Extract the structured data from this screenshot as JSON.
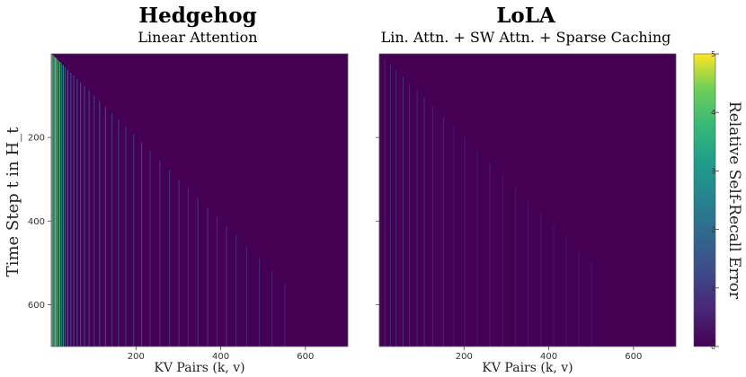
{
  "chart_data": [
    {
      "type": "heatmap",
      "title": "Hedgehog",
      "subtitle": "Linear Attention",
      "xlabel": "KV Pairs (k, v)",
      "ylabel": "Time Step t in H_t",
      "xlim": [
        0,
        700
      ],
      "ylim": [
        700,
        0
      ],
      "xticks": [
        200,
        400,
        600
      ],
      "yticks": [
        200,
        400,
        600
      ],
      "columns": [
        {
          "kv": 0,
          "value": 4.5
        },
        {
          "kv": 3,
          "value": 4.0
        },
        {
          "kv": 6,
          "value": 3.2
        },
        {
          "kv": 9,
          "value": 4.8
        },
        {
          "kv": 12,
          "value": 2.8
        },
        {
          "kv": 15,
          "value": 3.6
        },
        {
          "kv": 19,
          "value": 4.2
        },
        {
          "kv": 23,
          "value": 2.2
        },
        {
          "kv": 27,
          "value": 3.0
        },
        {
          "kv": 32,
          "value": 1.6
        },
        {
          "kv": 38,
          "value": 1.9
        },
        {
          "kv": 45,
          "value": 1.4
        },
        {
          "kv": 52,
          "value": 1.3
        },
        {
          "kv": 60,
          "value": 1.2
        },
        {
          "kv": 68,
          "value": 1.5
        },
        {
          "kv": 77,
          "value": 1.1
        },
        {
          "kv": 88,
          "value": 1.3
        },
        {
          "kv": 100,
          "value": 1.0
        },
        {
          "kv": 113,
          "value": 1.2
        },
        {
          "kv": 127,
          "value": 1.4
        },
        {
          "kv": 142,
          "value": 0.9
        },
        {
          "kv": 158,
          "value": 1.1
        },
        {
          "kv": 175,
          "value": 1.0
        },
        {
          "kv": 193,
          "value": 0.9
        },
        {
          "kv": 212,
          "value": 1.2
        },
        {
          "kv": 232,
          "value": 0.8
        },
        {
          "kv": 255,
          "value": 0.9
        },
        {
          "kv": 278,
          "value": 0.8
        },
        {
          "kv": 300,
          "value": 0.9
        },
        {
          "kv": 322,
          "value": 0.7
        },
        {
          "kv": 345,
          "value": 0.8
        },
        {
          "kv": 368,
          "value": 0.9
        },
        {
          "kv": 390,
          "value": 0.7
        },
        {
          "kv": 412,
          "value": 0.8
        },
        {
          "kv": 435,
          "value": 0.7
        },
        {
          "kv": 460,
          "value": 0.6
        },
        {
          "kv": 490,
          "value": 0.7
        },
        {
          "kv": 520,
          "value": 0.6
        },
        {
          "kv": 550,
          "value": 0.6
        }
      ]
    },
    {
      "type": "heatmap",
      "title": "LoLA",
      "subtitle": "Lin. Attn. + SW Attn. + Sparse Caching",
      "xlabel": "KV Pairs (k, v)",
      "xlim": [
        0,
        700
      ],
      "ylim": [
        700,
        0
      ],
      "xticks": [
        200,
        400,
        600
      ],
      "columns": [
        {
          "kv": 12,
          "value": 0.5
        },
        {
          "kv": 25,
          "value": 0.7
        },
        {
          "kv": 38,
          "value": 0.6
        },
        {
          "kv": 55,
          "value": 0.8
        },
        {
          "kv": 70,
          "value": 0.5
        },
        {
          "kv": 88,
          "value": 0.6
        },
        {
          "kv": 105,
          "value": 0.7
        },
        {
          "kv": 125,
          "value": 0.5
        },
        {
          "kv": 150,
          "value": 0.6
        },
        {
          "kv": 175,
          "value": 0.4
        },
        {
          "kv": 200,
          "value": 0.5
        },
        {
          "kv": 230,
          "value": 0.4
        },
        {
          "kv": 260,
          "value": 0.5
        },
        {
          "kv": 290,
          "value": 0.4
        },
        {
          "kv": 320,
          "value": 0.4
        },
        {
          "kv": 350,
          "value": 0.35
        },
        {
          "kv": 380,
          "value": 0.4
        },
        {
          "kv": 410,
          "value": 0.3
        },
        {
          "kv": 440,
          "value": 0.35
        },
        {
          "kv": 470,
          "value": 0.3
        },
        {
          "kv": 500,
          "value": 0.3
        }
      ]
    }
  ],
  "colorbar": {
    "label": "Relative Self-Recall Error",
    "range": [
      0,
      5
    ],
    "ticks": [
      "0",
      "1",
      "2",
      "3",
      "4",
      "5"
    ],
    "colormap": "viridis"
  }
}
